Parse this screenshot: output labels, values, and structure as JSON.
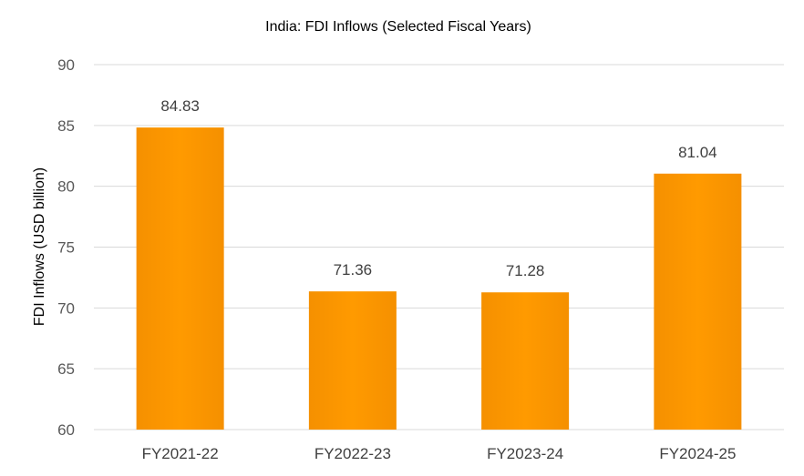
{
  "chart_data": {
    "type": "bar",
    "title": "India: FDI Inflows (Selected Fiscal Years)",
    "xlabel": "",
    "ylabel": "FDI Inflows (USD billion)",
    "categories": [
      "FY2021-22",
      "FY2022-23",
      "FY2023-24",
      "FY2024-25"
    ],
    "values": [
      84.83,
      71.36,
      71.28,
      81.04
    ],
    "data_labels": [
      "84.83",
      "71.36",
      "71.28",
      "81.04"
    ],
    "ylim": [
      60,
      90
    ],
    "yticks": [
      60,
      65,
      70,
      75,
      80,
      85,
      90
    ],
    "grid": true,
    "legend": "none",
    "bar_color": "#FF9900"
  }
}
